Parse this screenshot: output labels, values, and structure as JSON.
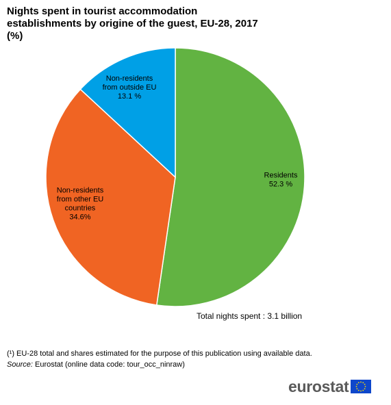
{
  "title": {
    "line1": "Nights spent in tourist accommodation",
    "line2": "establishments by origine of the guest, EU-28, 2017",
    "line3": "(%)"
  },
  "chart_data": {
    "type": "pie",
    "title": "Nights spent in tourist accommodation establishments by origine of the guest, EU-28, 2017 (%)",
    "slices": [
      {
        "name": "Residents",
        "value": 52.3,
        "label_lines": [
          "Residents",
          "52.3 %"
        ],
        "color": "#62b342"
      },
      {
        "name": "Non-residents from other EU countries",
        "value": 34.6,
        "label_lines": [
          "Non-residents",
          "from other EU",
          "countries",
          "34.6%"
        ],
        "color": "#f06423"
      },
      {
        "name": "Non-residents from outside EU",
        "value": 13.1,
        "label_lines": [
          "Non-residents",
          "from outside EU",
          "13.1 %"
        ],
        "color": "#00a0e6"
      }
    ],
    "start": "12 o'clock",
    "direction": "clockwise"
  },
  "annotation": "Total nights spent : 3.1 billion",
  "footnote": "(¹) EU-28 total and shares estimated for the purpose of this publication using available data.",
  "source": {
    "label": "Source:",
    "text": "Eurostat (online data code: tour_occ_ninraw)"
  },
  "logo": {
    "text": "eurostat",
    "icon": "eu-flag-icon"
  }
}
